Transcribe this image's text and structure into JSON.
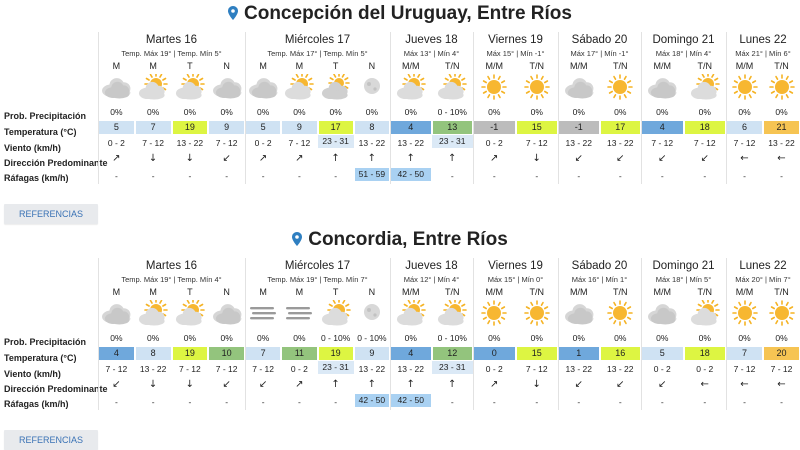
{
  "colors": {
    "cold": "#6fa8dc",
    "cool": "#cfe2f3",
    "mild": "#d9f7a0",
    "warm": "#ddf542",
    "hot": "#f6c453",
    "green": "#93c47d",
    "gray": "#bcbcbc",
    "gustHighlight": "#a9d1f2",
    "link": "#3a72b5"
  },
  "row_labels": [
    "Prob. Precipitación",
    "Temperatura (°C)",
    "Viento (km/h)",
    "Dirección Predominante",
    "Ráfagas (km/h)"
  ],
  "locations": [
    {
      "name": "Concepción del Uruguay, Entre Ríos",
      "references_label": "REFERENCIAS",
      "days": [
        {
          "day": "Martes 16",
          "sub": "Temp. Máx 19° | Temp. Mín 5°",
          "periods": [
            "M",
            "M",
            "T",
            "N"
          ],
          "icons": [
            "cloud",
            "partly",
            "partly",
            "cloud"
          ],
          "precip": [
            "0%",
            "0%",
            "0%",
            "0%"
          ],
          "temps": [
            "5",
            "7",
            "19",
            "9"
          ],
          "temp_colors": [
            "cool",
            "cool",
            "warm",
            "cool"
          ],
          "wind": [
            "0 - 2",
            "7 - 12",
            "13 - 22",
            "7 - 12"
          ],
          "dir": [
            "ne",
            "down",
            "down",
            "sw"
          ],
          "gusts": [
            "-",
            "-",
            "-",
            "-"
          ]
        },
        {
          "day": "Miércoles 17",
          "sub": "Temp. Máx 17° | Temp. Mín 5°",
          "periods": [
            "M",
            "M",
            "T",
            "N"
          ],
          "icons": [
            "cloud",
            "partly",
            "partlycloud",
            "night"
          ],
          "precip": [
            "0%",
            "0%",
            "0%",
            "0%"
          ],
          "temps": [
            "5",
            "9",
            "17",
            "8"
          ],
          "temp_colors": [
            "cool",
            "cool",
            "warm",
            "cool"
          ],
          "wind": [
            "0 - 2",
            "7 - 12",
            "23 - 31",
            "13 - 22"
          ],
          "dir": [
            "ne",
            "ne",
            "up",
            "up"
          ],
          "gusts": [
            "-",
            "-",
            "-",
            "51 - 59"
          ]
        },
        {
          "day": "Jueves 18",
          "sub": "Máx 13° | Mín 4°",
          "periods": [
            "M/M",
            "T/N"
          ],
          "icons": [
            "partly",
            "partly"
          ],
          "precip": [
            "0%",
            "0 - 10%"
          ],
          "temps": [
            "4",
            "13"
          ],
          "temp_colors": [
            "cold",
            "green"
          ],
          "wind": [
            "13 - 22",
            "23 - 31"
          ],
          "dir": [
            "up",
            "up"
          ],
          "gusts": [
            "42 - 50",
            "-"
          ]
        },
        {
          "day": "Viernes 19",
          "sub": "Máx 15° | Mín -1°",
          "periods": [
            "M/M",
            "T/N"
          ],
          "icons": [
            "sun",
            "sun"
          ],
          "precip": [
            "0%",
            "0%"
          ],
          "temps": [
            "-1",
            "15"
          ],
          "temp_colors": [
            "gray",
            "warm"
          ],
          "wind": [
            "0 - 2",
            "7 - 12"
          ],
          "dir": [
            "ne",
            "down"
          ],
          "gusts": [
            "-",
            "-"
          ]
        },
        {
          "day": "Sábado 20",
          "sub": "Máx 17° | Mín -1°",
          "periods": [
            "M/M",
            "T/N"
          ],
          "icons": [
            "cloud",
            "sun"
          ],
          "precip": [
            "0%",
            "0%"
          ],
          "temps": [
            "-1",
            "17"
          ],
          "temp_colors": [
            "gray",
            "warm"
          ],
          "wind": [
            "13 - 22",
            "13 - 22"
          ],
          "dir": [
            "sw",
            "sw"
          ],
          "gusts": [
            "-",
            "-"
          ]
        },
        {
          "day": "Domingo 21",
          "sub": "Máx 18° | Mín 4°",
          "periods": [
            "M/M",
            "T/N"
          ],
          "icons": [
            "cloud",
            "partly"
          ],
          "precip": [
            "0%",
            "0%"
          ],
          "temps": [
            "4",
            "18"
          ],
          "temp_colors": [
            "cold",
            "warm"
          ],
          "wind": [
            "7 - 12",
            "7 - 12"
          ],
          "dir": [
            "sw",
            "sw"
          ],
          "gusts": [
            "-",
            "-"
          ]
        },
        {
          "day": "Lunes 22",
          "sub": "Máx 21° | Mín 6°",
          "periods": [
            "M/M",
            "T/N"
          ],
          "icons": [
            "sun",
            "sun"
          ],
          "precip": [
            "0%",
            "0%"
          ],
          "temps": [
            "6",
            "21"
          ],
          "temp_colors": [
            "cool",
            "hot"
          ],
          "wind": [
            "7 - 12",
            "13 - 22"
          ],
          "dir": [
            "left",
            "left"
          ],
          "gusts": [
            "-",
            "-"
          ]
        }
      ]
    },
    {
      "name": "Concordia, Entre Ríos",
      "references_label": "REFERENCIAS",
      "days": [
        {
          "day": "Martes 16",
          "sub": "Temp. Máx 19° | Temp. Mín 4°",
          "periods": [
            "M",
            "M",
            "T",
            "N"
          ],
          "icons": [
            "cloud",
            "partly",
            "partly",
            "cloud"
          ],
          "precip": [
            "0%",
            "0%",
            "0%",
            "0%"
          ],
          "temps": [
            "4",
            "8",
            "19",
            "10"
          ],
          "temp_colors": [
            "cold",
            "cool",
            "warm",
            "green"
          ],
          "wind": [
            "7 - 12",
            "13 - 22",
            "7 - 12",
            "7 - 12"
          ],
          "dir": [
            "sw",
            "down",
            "down",
            "sw"
          ],
          "gusts": [
            "-",
            "-",
            "-",
            "-"
          ]
        },
        {
          "day": "Miércoles 17",
          "sub": "Temp. Máx 19° | Temp. Mín 7°",
          "periods": [
            "M",
            "M",
            "T",
            "N"
          ],
          "icons": [
            "fog",
            "fog",
            "partly",
            "night"
          ],
          "precip": [
            "0%",
            "0%",
            "0 - 10%",
            "0 - 10%"
          ],
          "temps": [
            "7",
            "11",
            "19",
            "9"
          ],
          "temp_colors": [
            "cool",
            "green",
            "warm",
            "cool"
          ],
          "wind": [
            "7 - 12",
            "0 - 2",
            "23 - 31",
            "13 - 22"
          ],
          "dir": [
            "sw",
            "ne",
            "up",
            "up"
          ],
          "gusts": [
            "-",
            "-",
            "-",
            "42 - 50"
          ]
        },
        {
          "day": "Jueves 18",
          "sub": "Máx 12° | Mín 4°",
          "periods": [
            "M/M",
            "T/N"
          ],
          "icons": [
            "partly",
            "partly"
          ],
          "precip": [
            "0%",
            "0 - 10%"
          ],
          "temps": [
            "4",
            "12"
          ],
          "temp_colors": [
            "cold",
            "green"
          ],
          "wind": [
            "13 - 22",
            "23 - 31"
          ],
          "dir": [
            "up",
            "up"
          ],
          "gusts": [
            "42 - 50",
            "-"
          ]
        },
        {
          "day": "Viernes 19",
          "sub": "Máx 15° | Mín 0°",
          "periods": [
            "M/M",
            "T/N"
          ],
          "icons": [
            "sun",
            "sun"
          ],
          "precip": [
            "0%",
            "0%"
          ],
          "temps": [
            "0",
            "15"
          ],
          "temp_colors": [
            "cold",
            "warm"
          ],
          "wind": [
            "0 - 2",
            "7 - 12"
          ],
          "dir": [
            "ne",
            "down"
          ],
          "gusts": [
            "-",
            "-"
          ]
        },
        {
          "day": "Sábado 20",
          "sub": "Máx 16° | Mín 1°",
          "periods": [
            "M/M",
            "T/N"
          ],
          "icons": [
            "cloud",
            "sun"
          ],
          "precip": [
            "0%",
            "0%"
          ],
          "temps": [
            "1",
            "16"
          ],
          "temp_colors": [
            "cold",
            "warm"
          ],
          "wind": [
            "13 - 22",
            "13 - 22"
          ],
          "dir": [
            "sw",
            "sw"
          ],
          "gusts": [
            "-",
            "-"
          ]
        },
        {
          "day": "Domingo 21",
          "sub": "Máx 18° | Mín 5°",
          "periods": [
            "M/M",
            "T/N"
          ],
          "icons": [
            "cloud",
            "partly"
          ],
          "precip": [
            "0%",
            "0%"
          ],
          "temps": [
            "5",
            "18"
          ],
          "temp_colors": [
            "cool",
            "warm"
          ],
          "wind": [
            "0 - 2",
            "0 - 2"
          ],
          "dir": [
            "sw",
            "left"
          ],
          "gusts": [
            "-",
            "-"
          ]
        },
        {
          "day": "Lunes 22",
          "sub": "Máx 20° | Mín 7°",
          "periods": [
            "M/M",
            "T/N"
          ],
          "icons": [
            "sun",
            "sun"
          ],
          "precip": [
            "0%",
            "0%"
          ],
          "temps": [
            "7",
            "20"
          ],
          "temp_colors": [
            "cool",
            "hot"
          ],
          "wind": [
            "7 - 12",
            "7 - 12"
          ],
          "dir": [
            "left",
            "left"
          ],
          "gusts": [
            "-",
            "-"
          ]
        }
      ]
    }
  ]
}
